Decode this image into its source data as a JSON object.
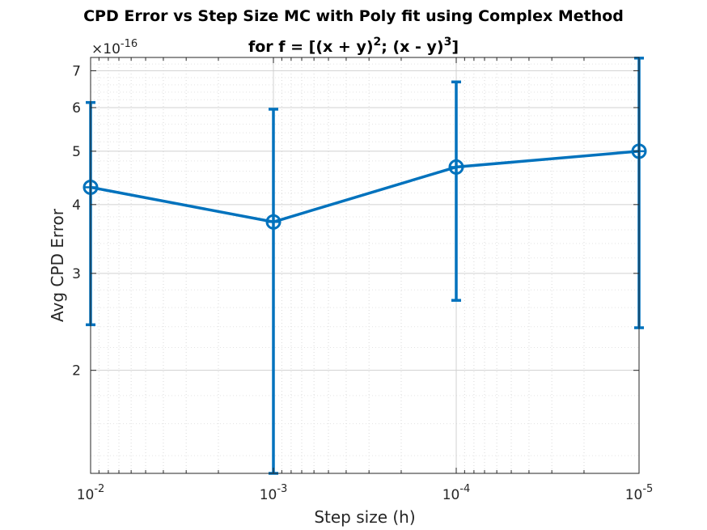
{
  "chart_data": {
    "type": "line",
    "title_line1": "CPD Error vs Step Size MC with Poly fit using Complex Method",
    "title_line2_prefix": "for f = [(x + y)",
    "title_sup1": "2",
    "title_line2_mid": "; (x - y)",
    "title_sup2": "3",
    "title_line2_suffix": "]",
    "xlabel": "Step size (h)",
    "ylabel": "Avg CPD Error",
    "y_exponent_base": "10",
    "y_exponent": "-16",
    "y_exponent_prefix": "×",
    "x_scale": "log",
    "y_scale": "log",
    "x_reversed": true,
    "grid": true,
    "minor_grid": true,
    "xlim": [
      0.01,
      1e-05
    ],
    "ylim": [
      1.3e-16,
      7.4e-16
    ],
    "x": [
      0.01,
      0.001,
      0.0001,
      1e-05
    ],
    "x_tick_labels": [
      {
        "base": "10",
        "exp": "-2",
        "value": 0.01
      },
      {
        "base": "10",
        "exp": "-3",
        "value": 0.001
      },
      {
        "base": "10",
        "exp": "-4",
        "value": 0.0001
      },
      {
        "base": "10",
        "exp": "-5",
        "value": 1e-05
      }
    ],
    "y_ticks": [
      {
        "label": "2",
        "value": 2e-16
      },
      {
        "label": "3",
        "value": 3e-16
      },
      {
        "label": "4",
        "value": 4e-16
      },
      {
        "label": "5",
        "value": 5e-16
      },
      {
        "label": "6",
        "value": 6e-16
      },
      {
        "label": "7",
        "value": 7e-16
      }
    ],
    "series": [
      {
        "values": [
          4.3e-16,
          3.72e-16,
          4.68e-16,
          5e-16
        ],
        "lower": [
          2.42e-16,
          1.3e-16,
          2.68e-16,
          2.39e-16
        ],
        "upper": [
          6.13e-16,
          5.96e-16,
          6.68e-16,
          7.38e-16
        ],
        "color": "#0072BD",
        "marker": "circle-plus"
      }
    ]
  }
}
